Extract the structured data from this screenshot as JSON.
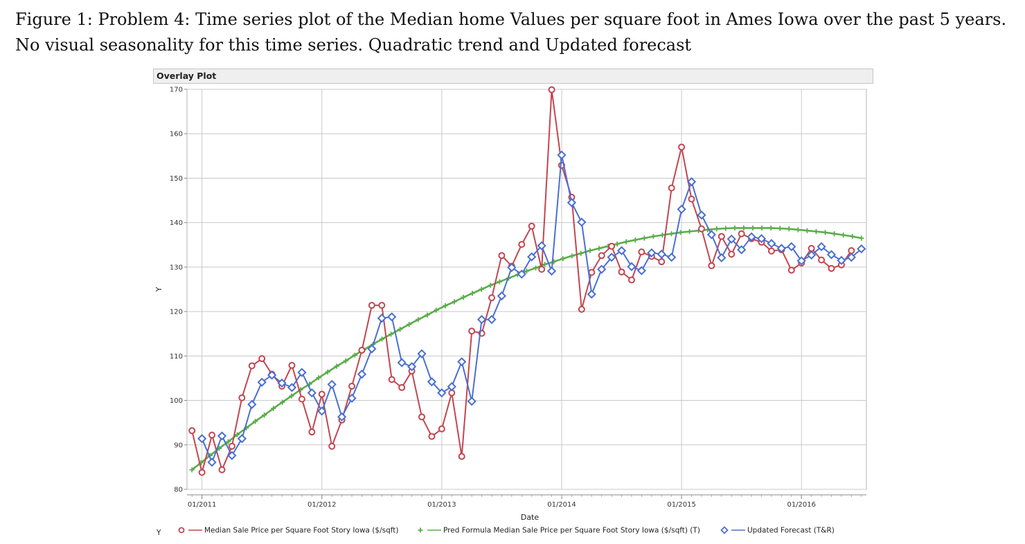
{
  "caption": "Figure 1: Problem 4: Time series plot of the Median home Values per square foot in Ames Iowa over the past 5 years. No visual seasonality for this time series. Quadratic trend and Updated forecast",
  "panel_title": "Overlay Plot",
  "chart_data": {
    "type": "line",
    "x_start": "2010-12",
    "x_labels": [
      "01/2011",
      "01/2012",
      "01/2013",
      "01/2014",
      "01/2015",
      "01/2016"
    ],
    "xlabel": "Date",
    "ylabel": "Y",
    "legend_y_label": "Y",
    "ylim": [
      80,
      170
    ],
    "yticks": [
      80,
      90,
      100,
      110,
      120,
      130,
      140,
      150,
      160,
      170
    ],
    "grid": true,
    "legend_position": "bottom",
    "series": [
      {
        "name": "Median Sale Price per Square Foot Story Iowa  ($/sqft)",
        "color": "#c2454f",
        "marker": "circle",
        "values": [
          93.2,
          83.8,
          92.2,
          84.4,
          89.7,
          100.6,
          107.8,
          109.4,
          105.9,
          103.2,
          107.9,
          100.3,
          92.9,
          101.4,
          89.7,
          95.6,
          103.2,
          111.3,
          121.4,
          121.4,
          104.7,
          102.9,
          106.6,
          96.3,
          91.9,
          93.6,
          101.7,
          87.4,
          115.6,
          115.1,
          123.1,
          132.6,
          130.2,
          135.1,
          139.2,
          129.5,
          169.9,
          152.9,
          145.7,
          120.5,
          128.8,
          132.6,
          134.7,
          128.9,
          127.1,
          133.4,
          132.4,
          131.2,
          147.8,
          157.0,
          145.3,
          138.6,
          130.3,
          136.9,
          132.9,
          137.5,
          136.4,
          135.6,
          133.6,
          133.9,
          129.3,
          130.9,
          134.2,
          131.6,
          129.7,
          130.5,
          133.7
        ]
      },
      {
        "name": "Pred Formula Median Sale Price per Square Foot Story Iowa  ($/sqft) (T)",
        "color": "#5aad4a",
        "marker": "plus",
        "values": [
          84.4,
          86.0,
          87.6,
          89.2,
          90.7,
          92.3,
          93.8,
          95.3,
          96.7,
          98.2,
          99.6,
          101.0,
          102.4,
          103.7,
          105.1,
          106.4,
          107.7,
          108.9,
          110.2,
          111.4,
          112.6,
          113.8,
          114.9,
          116.0,
          117.1,
          118.2,
          119.2,
          120.3,
          121.3,
          122.2,
          123.2,
          124.1,
          125.0,
          125.9,
          126.7,
          127.5,
          128.3,
          129.1,
          129.8,
          130.6,
          131.2,
          131.9,
          132.5,
          133.1,
          133.7,
          134.2,
          134.7,
          135.2,
          135.7,
          136.1,
          136.5,
          136.9,
          137.2,
          137.5,
          137.8,
          138.0,
          138.2,
          138.4,
          138.6,
          138.7,
          138.8,
          138.8,
          138.8,
          138.8,
          138.8,
          138.7,
          138.6,
          138.4,
          138.2,
          138.0,
          137.8,
          137.5,
          137.2,
          136.9,
          136.5
        ]
      },
      {
        "name": "Updated Forecast (T&R)",
        "color": "#4a6fd1",
        "marker": "diamond",
        "values": [
          null,
          91.4,
          86.1,
          92.0,
          87.6,
          91.4,
          99.1,
          104.1,
          105.7,
          103.9,
          102.9,
          106.3,
          101.7,
          97.6,
          103.6,
          96.3,
          100.5,
          105.9,
          111.6,
          118.5,
          118.8,
          108.5,
          107.6,
          110.5,
          104.2,
          101.7,
          103.1,
          108.7,
          99.8,
          118.2,
          118.2,
          123.5,
          129.9,
          128.4,
          132.3,
          134.8,
          129.1,
          155.2,
          144.5,
          140.1,
          123.9,
          129.5,
          132.2,
          133.7,
          130.1,
          129.2,
          133.2,
          132.9,
          132.2,
          143.0,
          149.2,
          141.7,
          137.3,
          132.1,
          136.3,
          133.9,
          136.8,
          136.4,
          135.3,
          134.2,
          134.6,
          131.4,
          132.7,
          134.6,
          132.8,
          131.5,
          132.2,
          134.1
        ]
      }
    ]
  }
}
